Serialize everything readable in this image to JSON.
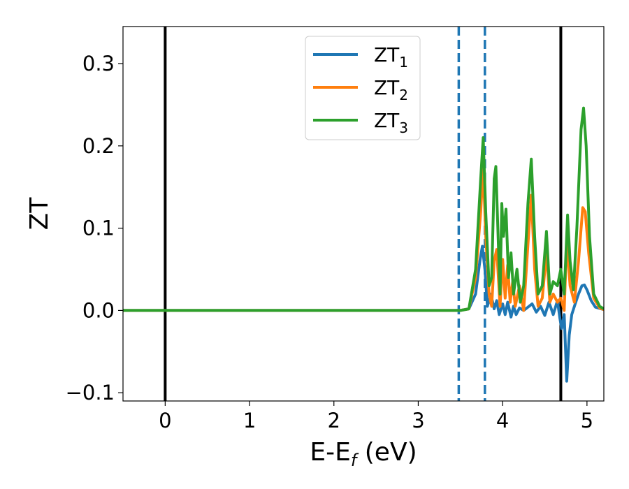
{
  "chart_data": {
    "type": "line",
    "title": "",
    "xlabel": {
      "main": "E-E",
      "sub": "f",
      "unit": " (eV)"
    },
    "ylabel": "ZT",
    "xlim": [
      -0.5,
      5.2
    ],
    "ylim": [
      -0.11,
      0.345
    ],
    "xticks": [
      0,
      1,
      2,
      3,
      4,
      5
    ],
    "xtick_labels": [
      "0",
      "1",
      "2",
      "3",
      "4",
      "5"
    ],
    "yticks": [
      -0.1,
      0.0,
      0.1,
      0.2,
      0.3
    ],
    "ytick_labels": [
      "−0.1",
      "0.0",
      "0.1",
      "0.2",
      "0.3"
    ],
    "grid": false,
    "legend_position": "top-center",
    "vertical_lines": [
      {
        "x": 0.0,
        "style": "solid",
        "color": "#000000"
      },
      {
        "x": 3.48,
        "style": "dashed",
        "color": "#1f77b4"
      },
      {
        "x": 3.79,
        "style": "dashed",
        "color": "#1f77b4"
      },
      {
        "x": 4.69,
        "style": "solid",
        "color": "#000000"
      }
    ],
    "series": [
      {
        "name": "ZT",
        "sub": "1",
        "color": "#1f77b4",
        "points": [
          [
            -0.5,
            0
          ],
          [
            3.5,
            0
          ],
          [
            3.6,
            0.002
          ],
          [
            3.68,
            0.02
          ],
          [
            3.73,
            0.06
          ],
          [
            3.76,
            0.078
          ],
          [
            3.79,
            0.05
          ],
          [
            3.82,
            0.005
          ],
          [
            3.86,
            0.02
          ],
          [
            3.9,
            0.002
          ],
          [
            3.93,
            0.012
          ],
          [
            3.96,
            -0.005
          ],
          [
            4.0,
            0.008
          ],
          [
            4.03,
            -0.005
          ],
          [
            4.06,
            0.01
          ],
          [
            4.1,
            -0.008
          ],
          [
            4.13,
            0.005
          ],
          [
            4.16,
            -0.005
          ],
          [
            4.2,
            0.003
          ],
          [
            4.25,
            0.0
          ],
          [
            4.3,
            0.004
          ],
          [
            4.35,
            0.008
          ],
          [
            4.4,
            -0.002
          ],
          [
            4.45,
            0.005
          ],
          [
            4.5,
            -0.006
          ],
          [
            4.55,
            0.01
          ],
          [
            4.6,
            -0.005
          ],
          [
            4.65,
            0.012
          ],
          [
            4.68,
            -0.01
          ],
          [
            4.7,
            -0.022
          ],
          [
            4.73,
            -0.005
          ],
          [
            4.76,
            -0.086
          ],
          [
            4.79,
            -0.03
          ],
          [
            4.82,
            -0.005
          ],
          [
            4.86,
            0.008
          ],
          [
            4.9,
            0.02
          ],
          [
            4.94,
            0.03
          ],
          [
            4.97,
            0.031
          ],
          [
            5.0,
            0.025
          ],
          [
            5.05,
            0.012
          ],
          [
            5.1,
            0.004
          ],
          [
            5.2,
            0.001
          ]
        ]
      },
      {
        "name": "ZT",
        "sub": "2",
        "color": "#ff7f0e",
        "points": [
          [
            -0.5,
            0
          ],
          [
            3.5,
            0
          ],
          [
            3.6,
            0.002
          ],
          [
            3.68,
            0.04
          ],
          [
            3.74,
            0.12
          ],
          [
            3.77,
            0.175
          ],
          [
            3.8,
            0.09
          ],
          [
            3.84,
            0.02
          ],
          [
            3.87,
            0.005
          ],
          [
            3.9,
            0.06
          ],
          [
            3.93,
            0.074
          ],
          [
            3.95,
            0.04
          ],
          [
            3.97,
            0.005
          ],
          [
            4.0,
            0.062
          ],
          [
            4.03,
            0.015
          ],
          [
            4.06,
            0.055
          ],
          [
            4.09,
            0.01
          ],
          [
            4.12,
            0.035
          ],
          [
            4.15,
            0.005
          ],
          [
            4.2,
            0.03
          ],
          [
            4.25,
            0.0
          ],
          [
            4.3,
            0.08
          ],
          [
            4.34,
            0.14
          ],
          [
            4.38,
            0.05
          ],
          [
            4.42,
            0.005
          ],
          [
            4.47,
            0.015
          ],
          [
            4.52,
            0.07
          ],
          [
            4.56,
            0.01
          ],
          [
            4.6,
            0.02
          ],
          [
            4.65,
            0.01
          ],
          [
            4.69,
            0.015
          ],
          [
            4.73,
            0.0
          ],
          [
            4.76,
            0.085
          ],
          [
            4.8,
            0.03
          ],
          [
            4.85,
            0.01
          ],
          [
            4.9,
            0.06
          ],
          [
            4.95,
            0.125
          ],
          [
            4.98,
            0.12
          ],
          [
            5.02,
            0.07
          ],
          [
            5.08,
            0.015
          ],
          [
            5.15,
            0.003
          ],
          [
            5.2,
            0.001
          ]
        ]
      },
      {
        "name": "ZT",
        "sub": "3",
        "color": "#2ca02c",
        "points": [
          [
            -0.5,
            0
          ],
          [
            3.5,
            0
          ],
          [
            3.6,
            0.002
          ],
          [
            3.68,
            0.05
          ],
          [
            3.74,
            0.16
          ],
          [
            3.77,
            0.21
          ],
          [
            3.8,
            0.12
          ],
          [
            3.84,
            0.03
          ],
          [
            3.87,
            0.04
          ],
          [
            3.9,
            0.16
          ],
          [
            3.92,
            0.175
          ],
          [
            3.95,
            0.08
          ],
          [
            3.97,
            0.02
          ],
          [
            3.99,
            0.13
          ],
          [
            4.01,
            0.09
          ],
          [
            4.04,
            0.123
          ],
          [
            4.07,
            0.04
          ],
          [
            4.1,
            0.07
          ],
          [
            4.13,
            0.02
          ],
          [
            4.17,
            0.05
          ],
          [
            4.21,
            0.01
          ],
          [
            4.25,
            0.03
          ],
          [
            4.3,
            0.13
          ],
          [
            4.34,
            0.184
          ],
          [
            4.38,
            0.09
          ],
          [
            4.42,
            0.02
          ],
          [
            4.47,
            0.03
          ],
          [
            4.52,
            0.096
          ],
          [
            4.56,
            0.02
          ],
          [
            4.6,
            0.035
          ],
          [
            4.65,
            0.03
          ],
          [
            4.69,
            0.05
          ],
          [
            4.73,
            0.02
          ],
          [
            4.77,
            0.116
          ],
          [
            4.8,
            0.06
          ],
          [
            4.84,
            0.025
          ],
          [
            4.88,
            0.1
          ],
          [
            4.93,
            0.22
          ],
          [
            4.96,
            0.246
          ],
          [
            4.99,
            0.2
          ],
          [
            5.03,
            0.09
          ],
          [
            5.08,
            0.02
          ],
          [
            5.15,
            0.005
          ],
          [
            5.2,
            0.002
          ]
        ]
      }
    ]
  }
}
